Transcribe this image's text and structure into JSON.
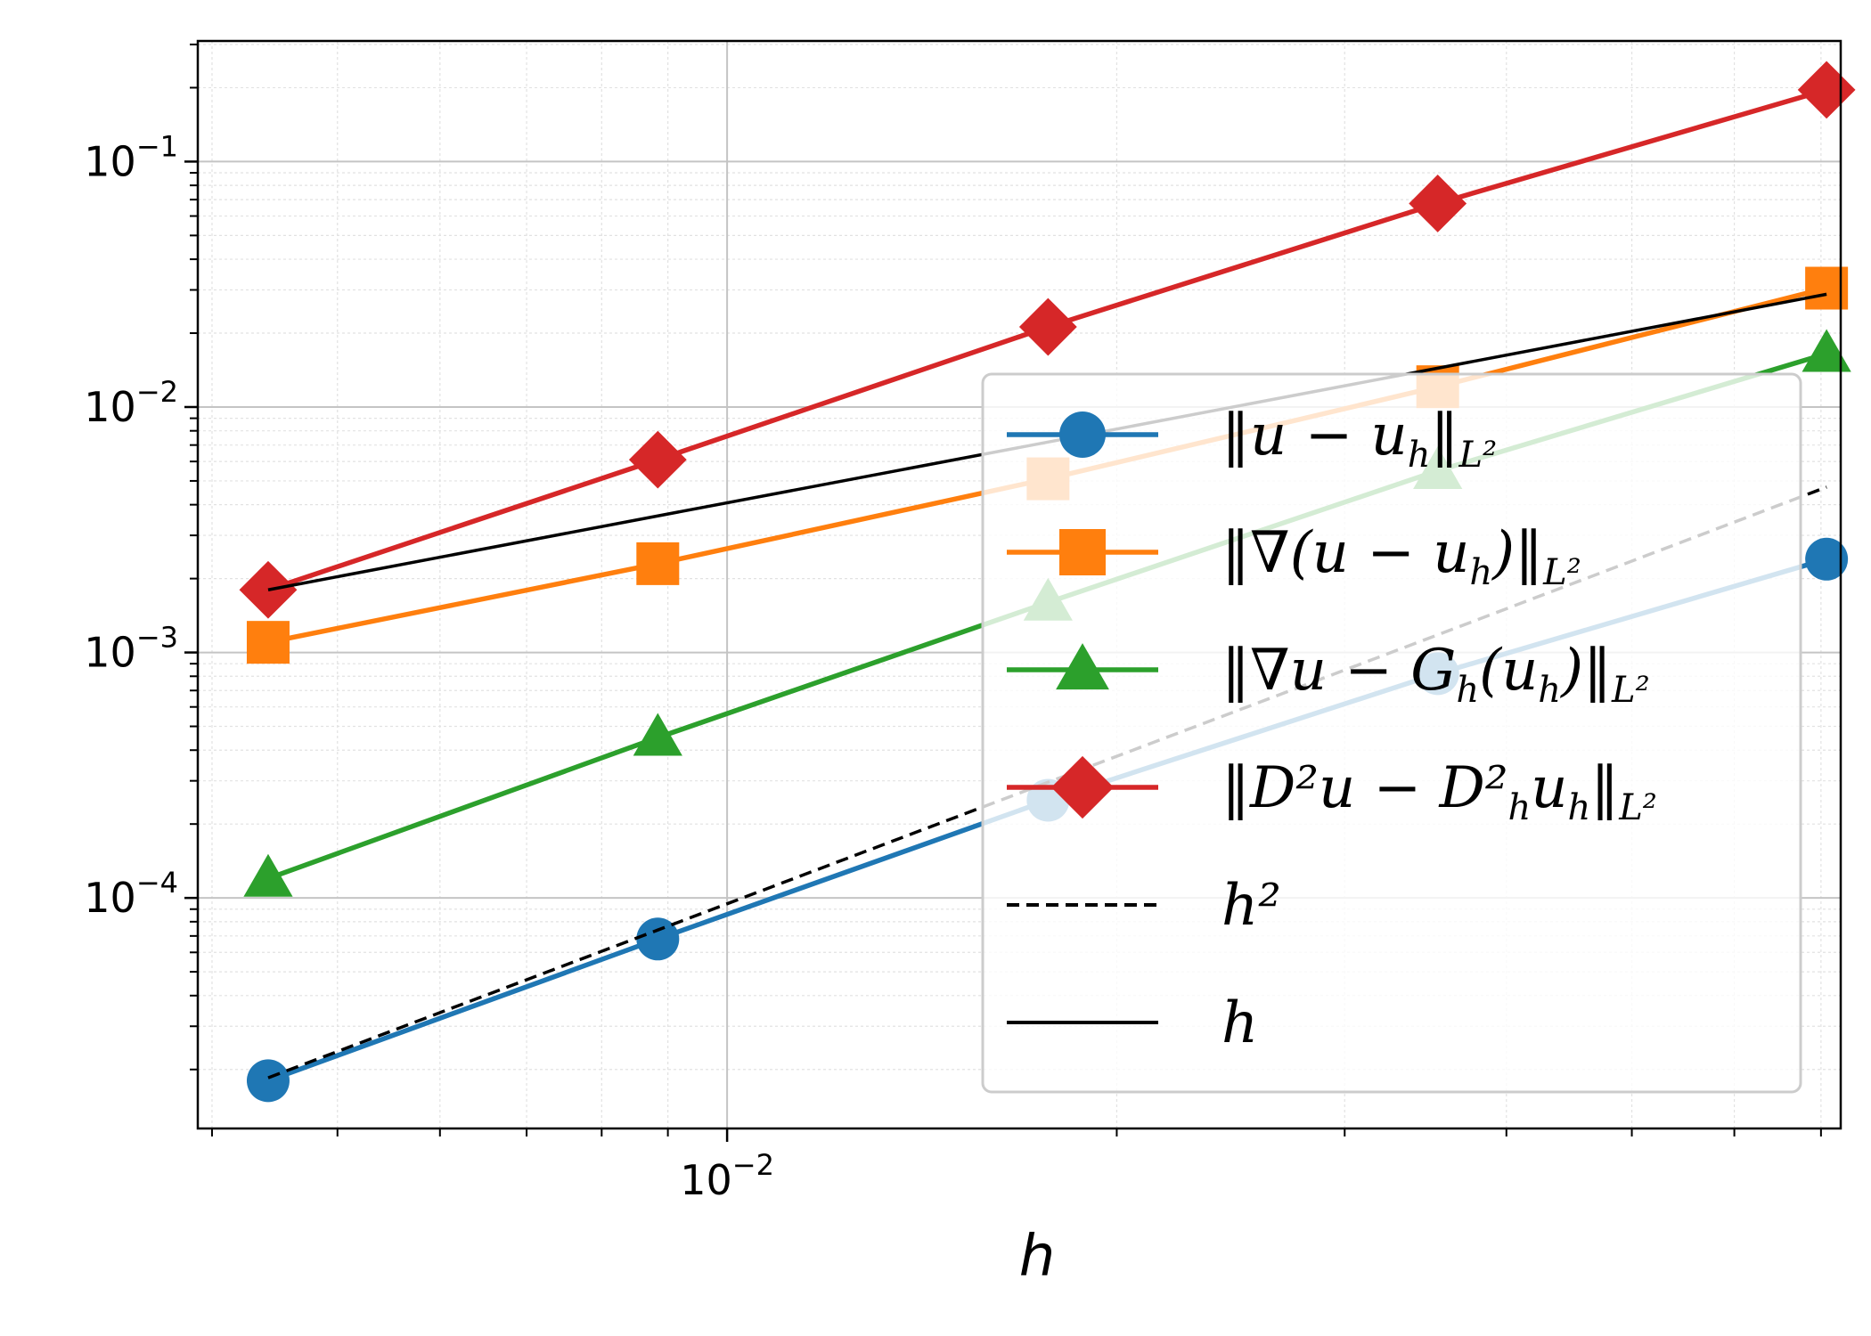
{
  "chart_data": {
    "type": "line",
    "scale": {
      "x": "log",
      "y": "log"
    },
    "xlabel": "h",
    "ylabel": "",
    "xlim": [
      0.0039,
      0.0725
    ],
    "ylim": [
      1.15e-05,
      0.31
    ],
    "x": [
      0.00442,
      0.00884,
      0.0177,
      0.0354,
      0.0707
    ],
    "series": [
      {
        "name": "‖u − u_h‖_{L²}",
        "label_main": "‖u − u",
        "label_sub": "h",
        "label_tail": "‖",
        "label_norm": "L²",
        "color": "#1f77b4",
        "marker": "circle",
        "dash": "solid",
        "values": [
          1.8e-05,
          6.8e-05,
          0.00025,
          0.00082,
          0.0024
        ]
      },
      {
        "name": "‖∇(u − u_h)‖_{L²}",
        "label_main": "‖∇(u − u",
        "label_sub": "h",
        "label_tail": ")‖",
        "label_norm": "L²",
        "color": "#ff7f0e",
        "marker": "square",
        "dash": "solid",
        "values": [
          0.0011,
          0.0023,
          0.0051,
          0.0121,
          0.0305
        ]
      },
      {
        "name": "‖∇u − G_h(u_h)‖_{L²}",
        "label_main": "‖∇u − G",
        "label_sub": "h",
        "label_tail": "(u",
        "label_sub2": "h",
        "label_tail2": ")‖",
        "label_norm": "L²",
        "color": "#2ca02c",
        "marker": "triangle",
        "dash": "solid",
        "values": [
          0.00012,
          0.00045,
          0.0016,
          0.0055,
          0.0165
        ]
      },
      {
        "name": "‖D²u − D²_h u_h‖_{L²}",
        "label_main": "‖D²u − D²",
        "label_sub": "h",
        "label_tail": "u",
        "label_sub2": "h",
        "label_tail2": "‖",
        "label_norm": "L²",
        "color": "#d62728",
        "marker": "diamond",
        "dash": "solid",
        "values": [
          0.0018,
          0.0061,
          0.0212,
          0.0675,
          0.196
        ]
      },
      {
        "name": "h²",
        "label_main": "h²",
        "color": "#000000",
        "marker": "none",
        "dash": "dashed",
        "values": [
          1.85e-05,
          7.4e-05,
          0.000296,
          0.00118,
          0.00472
        ]
      },
      {
        "name": "h",
        "label_main": "h",
        "color": "#000000",
        "marker": "none",
        "dash": "solid",
        "values": [
          0.0018,
          0.0036,
          0.0072,
          0.0144,
          0.0288
        ]
      }
    ],
    "x_ticks": [
      {
        "value": 0.01,
        "base": "10",
        "exp": "−2"
      }
    ],
    "y_ticks": [
      {
        "value": 0.0001,
        "base": "10",
        "exp": "−4"
      },
      {
        "value": 0.001,
        "base": "10",
        "exp": "−3"
      },
      {
        "value": 0.01,
        "base": "10",
        "exp": "−2"
      },
      {
        "value": 0.1,
        "base": "10",
        "exp": "−1"
      }
    ],
    "grid": true,
    "legend_position": "lower-right"
  }
}
